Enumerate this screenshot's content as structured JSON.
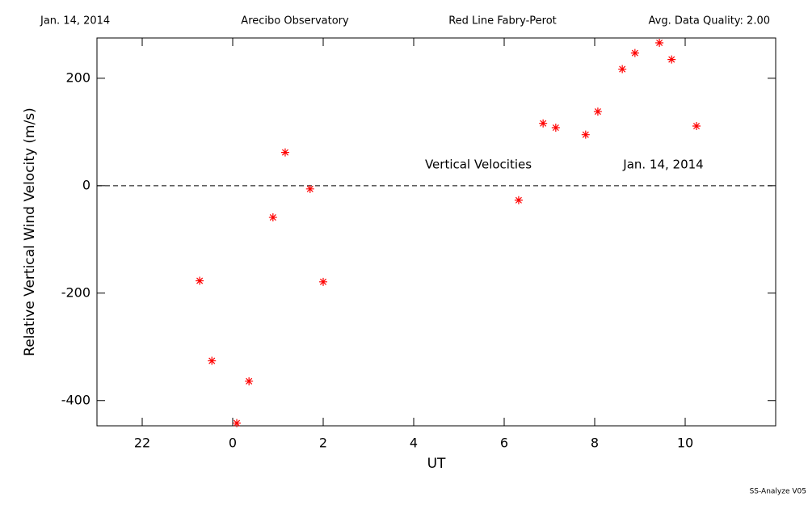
{
  "chart_data": {
    "type": "scatter",
    "header": [
      "Jan. 14, 2014",
      "Arecibo Observatory",
      "Red Line Fabry-Perot",
      "Avg. Data Quality: 2.00"
    ],
    "xlabel": "UT",
    "ylabel": "Relative Vertical Wind Velocity (m/s)",
    "annotations": [
      "Vertical Velocities",
      "Jan. 14, 2014"
    ],
    "footer": "SS-Analyze V05",
    "xlim": [
      -3,
      12
    ],
    "ylim": [
      -447,
      275
    ],
    "xticks": [
      {
        "value": -2,
        "label": "22"
      },
      0,
      2,
      4,
      6,
      8,
      10
    ],
    "yticks": [
      -400,
      -200,
      0,
      200
    ],
    "zero_line": true,
    "series": [
      {
        "color": "#ff0000",
        "x": [
          -0.73,
          -0.46,
          0.09,
          0.36,
          0.89,
          1.16,
          1.71,
          2.0,
          6.32,
          6.86,
          7.14,
          7.8,
          8.07,
          8.61,
          8.89,
          9.43,
          9.7,
          10.25
        ],
        "values": [
          -177,
          -326,
          -442,
          -364,
          -59,
          62,
          -6,
          -179,
          -27,
          116,
          108,
          95,
          138,
          217,
          247,
          266,
          235,
          111
        ]
      }
    ]
  }
}
